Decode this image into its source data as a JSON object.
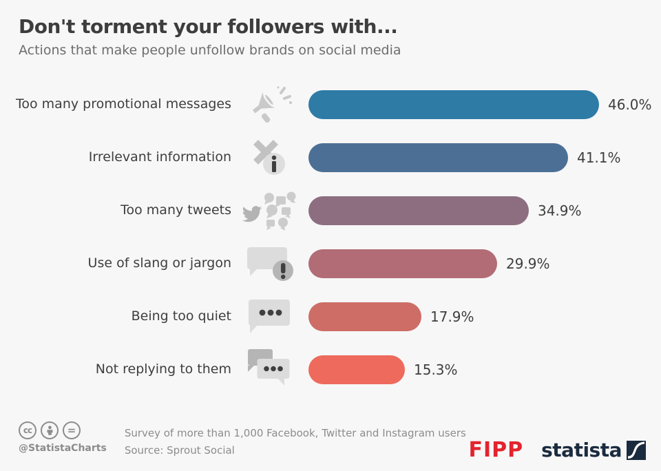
{
  "header": {
    "title": "Don't torment your followers with...",
    "subtitle": "Actions that make people unfollow brands on social media"
  },
  "chart_data": {
    "type": "bar",
    "orientation": "horizontal",
    "title": "Don't torment your followers with...",
    "subtitle": "Actions that make people unfollow brands on social media",
    "categories": [
      "Too many promotional messages",
      "Irrelevant information",
      "Too many tweets",
      "Use of slang or jargon",
      "Being too quiet",
      "Not replying to them"
    ],
    "values": [
      46.0,
      41.1,
      34.9,
      29.9,
      17.9,
      15.3
    ],
    "value_labels": [
      "46.0%",
      "41.1%",
      "34.9%",
      "29.9%",
      "17.9%",
      "15.3%"
    ],
    "bar_colors": [
      "#2e7ba6",
      "#4c7095",
      "#8d6e80",
      "#b26c76",
      "#cd6d66",
      "#ed6a5c"
    ],
    "icons": [
      "megaphone-icon",
      "irrelevant-information-icon",
      "twitter-tweets-icon",
      "slang-jargon-bubble-icon",
      "quiet-bubble-ellipsis-icon",
      "no-reply-chat-bubbles-icon"
    ],
    "xlim": [
      0,
      50
    ],
    "unit": "%",
    "grid": false,
    "legend": false
  },
  "footer": {
    "cc_labels": {
      "cc": "cc",
      "attribution": "person",
      "equal": "="
    },
    "handle": "@StatistaCharts",
    "survey_note": "Survey of more than 1,000 Facebook, Twitter and Instagram users",
    "source": "Source: Sprout Social",
    "fipp_logo": "FIPP",
    "statista_logo": "statista"
  },
  "colors": {
    "background": "#f7f7f7",
    "title_text": "#3d3d3d",
    "subtitle_text": "#6d6d6d",
    "label_text": "#3e3e3e",
    "footer_text": "#8c8c8c",
    "fipp_red": "#e4232d",
    "statista_navy": "#1b2b3f",
    "icon_light_gray": "#d3d3d3",
    "icon_mid_gray": "#b3b3b3",
    "icon_dark": "#3f3f3f"
  }
}
